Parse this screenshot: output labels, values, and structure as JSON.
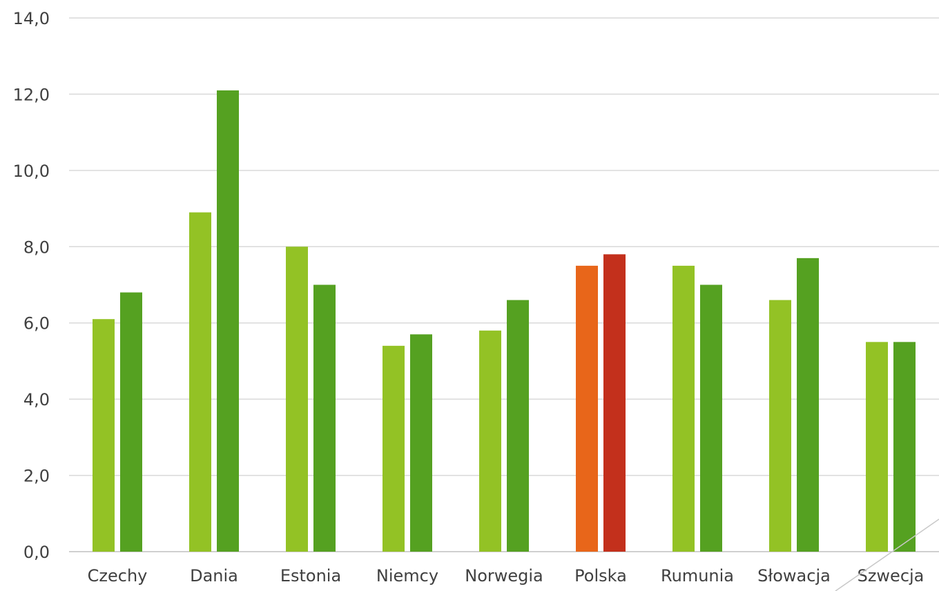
{
  "chart_data": {
    "type": "bar",
    "categories": [
      "Czechy",
      "Dania",
      "Estonia",
      "Niemcy",
      "Norwegia",
      "Polska",
      "Rumunia",
      "Słowacja",
      "Szwecja"
    ],
    "series": [
      {
        "values": [
          6.1,
          8.9,
          8.0,
          5.4,
          5.8,
          7.5,
          7.5,
          6.6,
          5.5
        ]
      },
      {
        "values": [
          6.8,
          12.1,
          7.0,
          5.7,
          6.6,
          7.8,
          7.0,
          7.7,
          5.5
        ]
      }
    ],
    "ylim": [
      0,
      14
    ],
    "yticks": [
      "0,0",
      "2,0",
      "4,0",
      "6,0",
      "8,0",
      "10,0",
      "12,0",
      "14,0"
    ],
    "grid": true,
    "colors": {
      "series1": "#93c225",
      "series2": "#55a121",
      "highlight_series1": "#e8661a",
      "highlight_series2": "#c3301c"
    },
    "highlight_category": "Polska"
  }
}
